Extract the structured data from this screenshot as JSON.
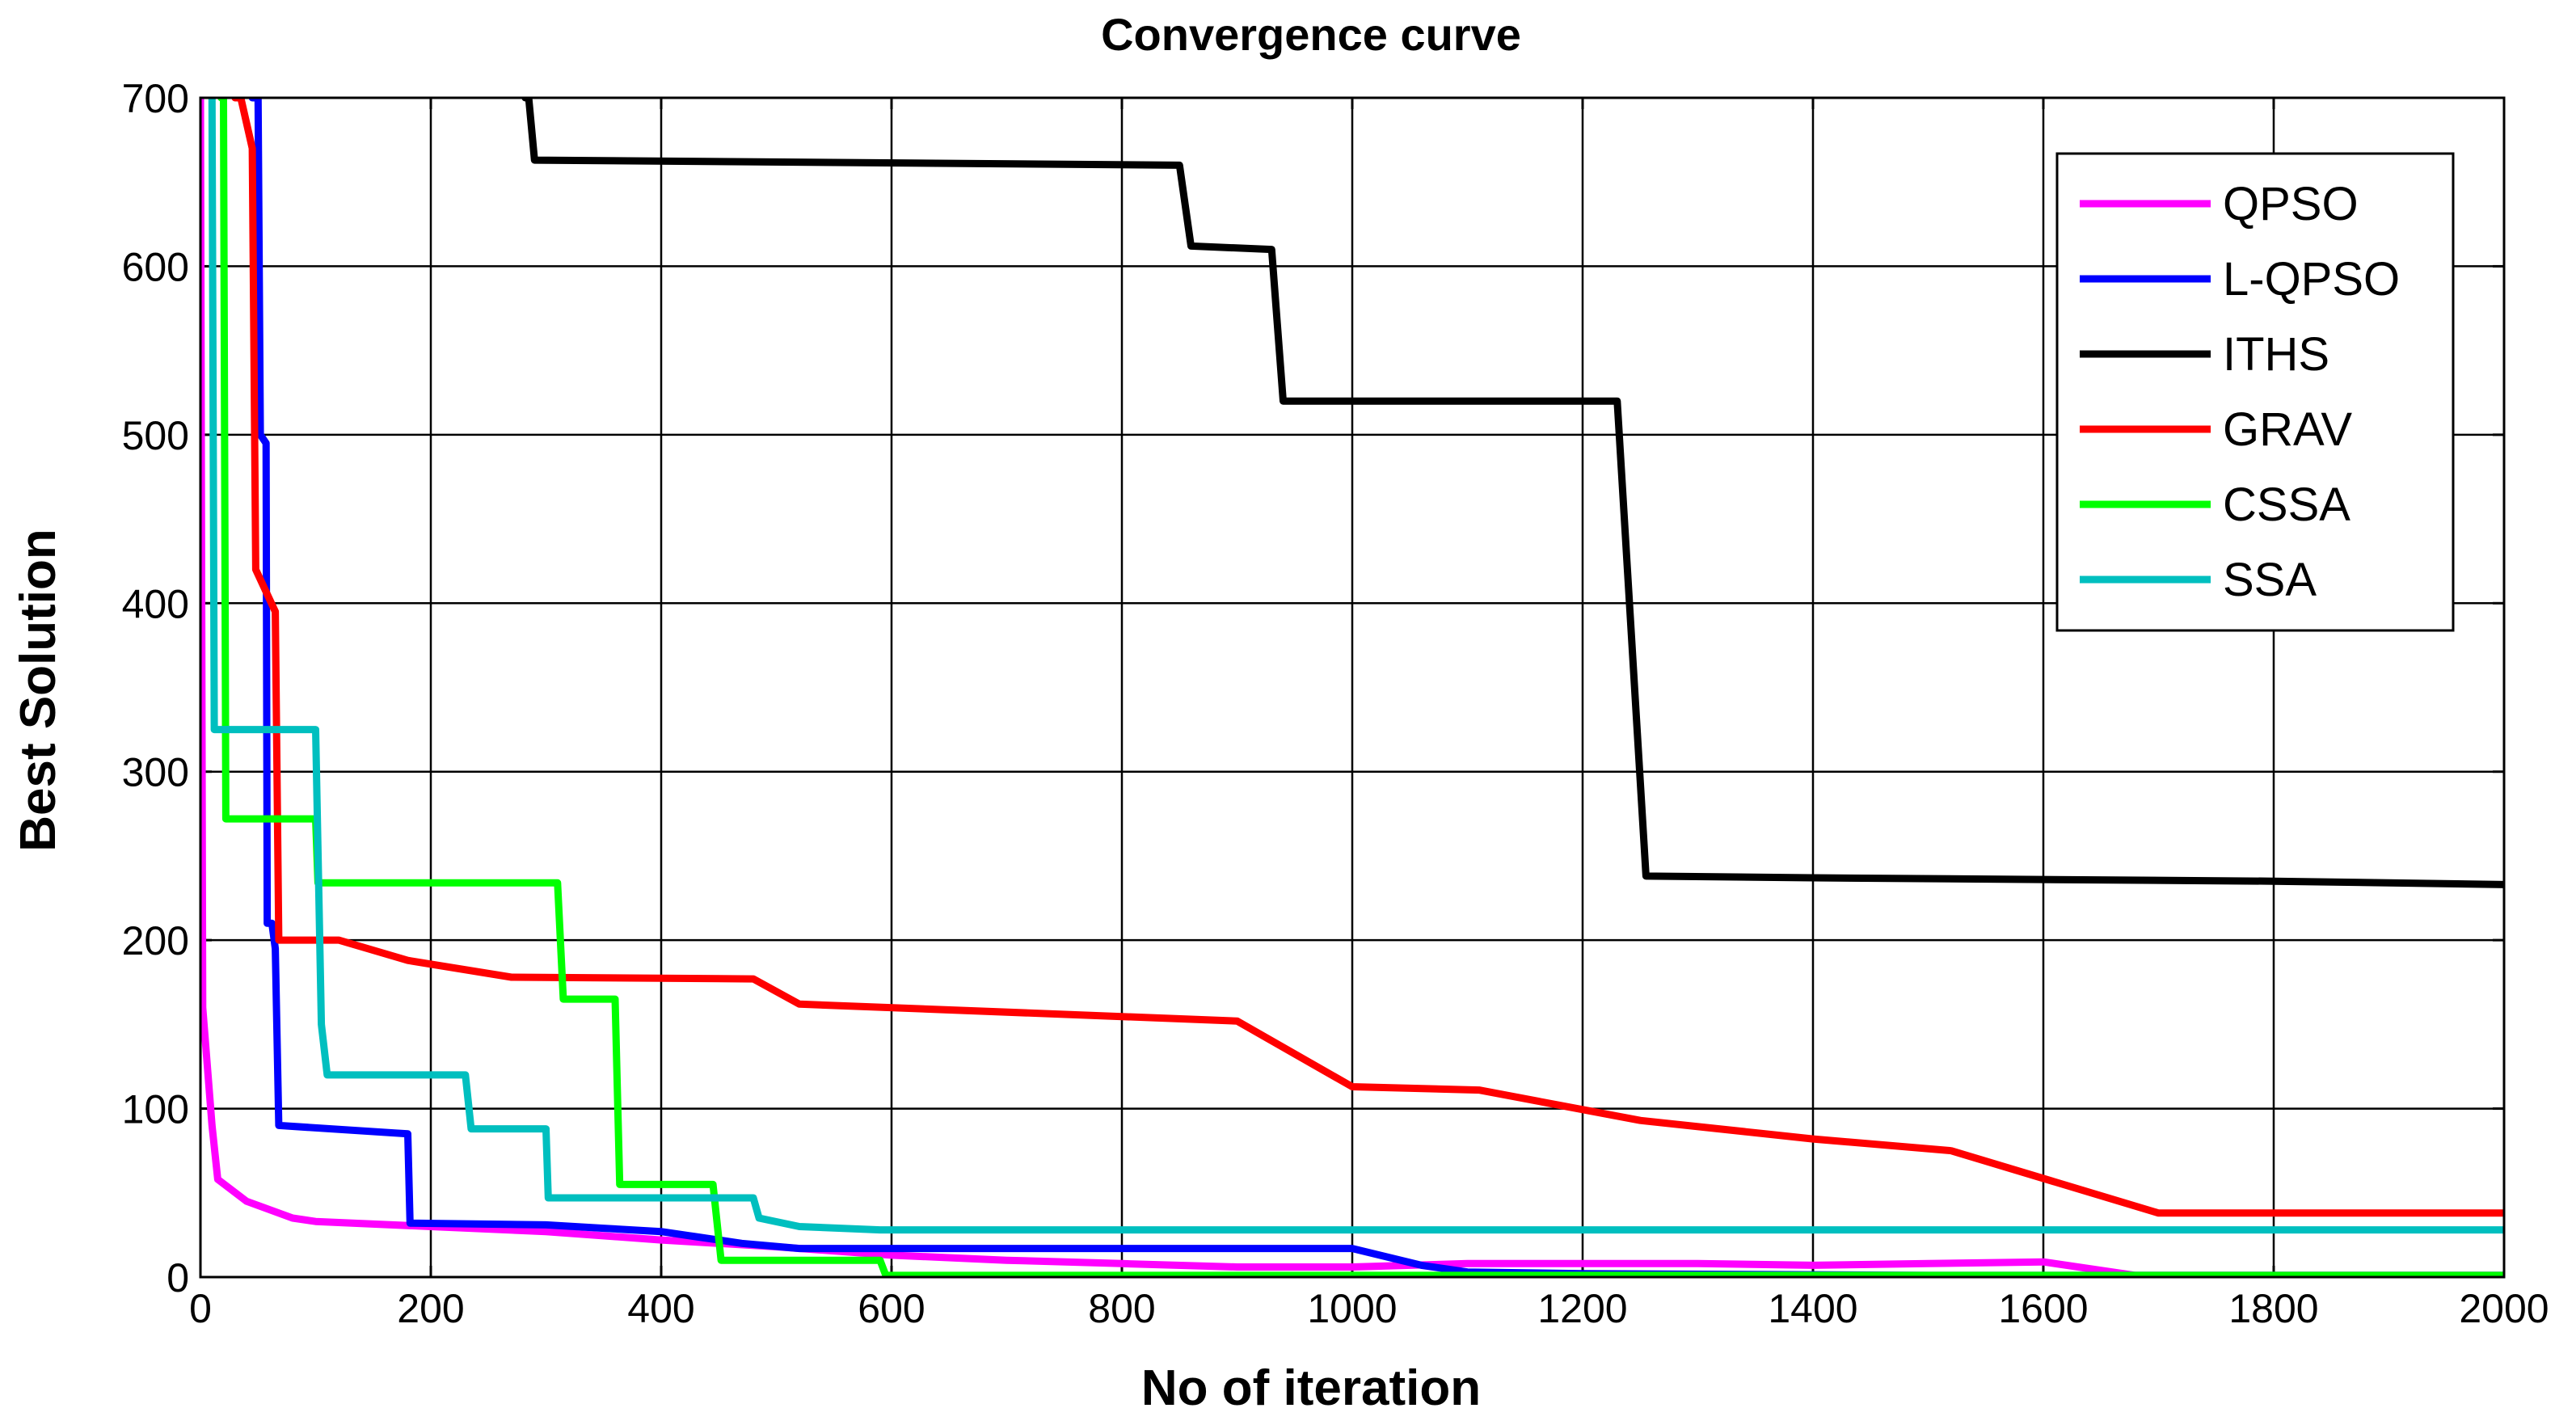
{
  "chart_data": {
    "type": "line",
    "title": "Convergence curve",
    "xlabel": "No of iteration",
    "ylabel": "Best Solution",
    "xlim": [
      0,
      2000
    ],
    "ylim": [
      0,
      700
    ],
    "xticks": [
      0,
      200,
      400,
      600,
      800,
      1000,
      1200,
      1400,
      1600,
      1800,
      2000
    ],
    "yticks": [
      0,
      100,
      200,
      300,
      400,
      500,
      600,
      700
    ],
    "grid": true,
    "legend_position": "top-right",
    "series": [
      {
        "name": "QPSO",
        "color": "#ff00ff",
        "points": [
          [
            0,
            700
          ],
          [
            2,
            160
          ],
          [
            10,
            90
          ],
          [
            15,
            58
          ],
          [
            40,
            45
          ],
          [
            80,
            35
          ],
          [
            100,
            33
          ],
          [
            200,
            30
          ],
          [
            300,
            27
          ],
          [
            400,
            22
          ],
          [
            500,
            18
          ],
          [
            600,
            13
          ],
          [
            700,
            10
          ],
          [
            800,
            8
          ],
          [
            900,
            6
          ],
          [
            1000,
            6
          ],
          [
            1100,
            8
          ],
          [
            1200,
            8
          ],
          [
            1300,
            8
          ],
          [
            1400,
            7
          ],
          [
            1500,
            8
          ],
          [
            1600,
            9
          ],
          [
            1680,
            1
          ],
          [
            2000,
            1
          ]
        ]
      },
      {
        "name": "L-QPSO",
        "color": "#0000ff",
        "points": [
          [
            45,
            700
          ],
          [
            50,
            700
          ],
          [
            52,
            500
          ],
          [
            57,
            495
          ],
          [
            58,
            210
          ],
          [
            62,
            210
          ],
          [
            65,
            195
          ],
          [
            68,
            90
          ],
          [
            180,
            85
          ],
          [
            182,
            32
          ],
          [
            300,
            31
          ],
          [
            350,
            29
          ],
          [
            400,
            27
          ],
          [
            430,
            24
          ],
          [
            470,
            20
          ],
          [
            520,
            17
          ],
          [
            1000,
            17
          ],
          [
            1060,
            7
          ],
          [
            1100,
            3
          ],
          [
            1200,
            2
          ],
          [
            1500,
            1
          ],
          [
            2000,
            1
          ]
        ]
      },
      {
        "name": "ITHS",
        "color": "#000000",
        "points": [
          [
            282,
            700
          ],
          [
            285,
            700
          ],
          [
            290,
            663
          ],
          [
            850,
            660
          ],
          [
            860,
            612
          ],
          [
            930,
            610
          ],
          [
            940,
            520
          ],
          [
            1230,
            520
          ],
          [
            1255,
            238
          ],
          [
            1400,
            237
          ],
          [
            1800,
            235
          ],
          [
            2000,
            233
          ]
        ]
      },
      {
        "name": "GRAV",
        "color": "#ff0000",
        "points": [
          [
            30,
            700
          ],
          [
            35,
            700
          ],
          [
            45,
            670
          ],
          [
            48,
            420
          ],
          [
            65,
            395
          ],
          [
            68,
            200
          ],
          [
            120,
            200
          ],
          [
            180,
            188
          ],
          [
            270,
            178
          ],
          [
            480,
            177
          ],
          [
            520,
            162
          ],
          [
            900,
            152
          ],
          [
            1000,
            113
          ],
          [
            1110,
            111
          ],
          [
            1250,
            93
          ],
          [
            1400,
            82
          ],
          [
            1520,
            75
          ],
          [
            1700,
            38
          ],
          [
            2000,
            38
          ]
        ]
      },
      {
        "name": "CSSA",
        "color": "#00ff00",
        "points": [
          [
            18,
            700
          ],
          [
            20,
            700
          ],
          [
            22,
            272
          ],
          [
            100,
            272
          ],
          [
            102,
            234
          ],
          [
            310,
            234
          ],
          [
            315,
            165
          ],
          [
            360,
            165
          ],
          [
            364,
            55
          ],
          [
            445,
            55
          ],
          [
            452,
            10
          ],
          [
            590,
            10
          ],
          [
            595,
            1
          ],
          [
            2000,
            1
          ]
        ]
      },
      {
        "name": "SSA",
        "color": "#00bfbf",
        "points": [
          [
            10,
            700
          ],
          [
            12,
            325
          ],
          [
            100,
            325
          ],
          [
            105,
            150
          ],
          [
            110,
            120
          ],
          [
            230,
            120
          ],
          [
            235,
            88
          ],
          [
            300,
            88
          ],
          [
            302,
            47
          ],
          [
            480,
            47
          ],
          [
            485,
            35
          ],
          [
            520,
            30
          ],
          [
            590,
            28
          ],
          [
            2000,
            28
          ]
        ]
      }
    ]
  }
}
